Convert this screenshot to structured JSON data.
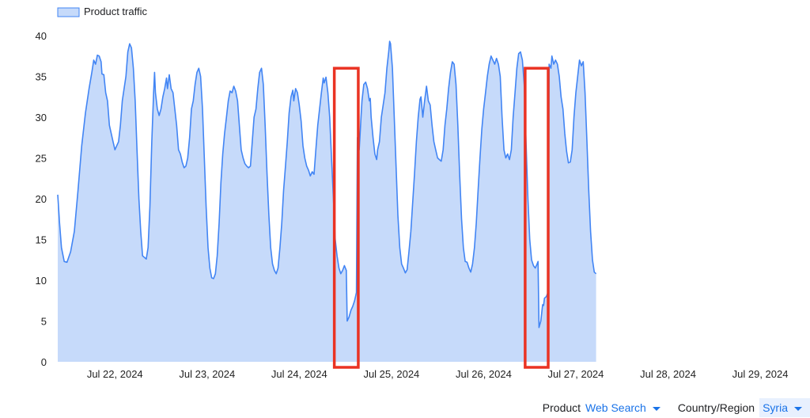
{
  "chart_data": {
    "type": "area",
    "legend": {
      "label": "Product traffic",
      "placement": "top-left"
    },
    "colors": {
      "line": "#4285f4",
      "fill": "#c6dafa",
      "highlight": "#ea3323",
      "tick_text": "#222222"
    },
    "ylim": [
      0,
      40
    ],
    "yticks": [
      0,
      5,
      10,
      15,
      20,
      25,
      30,
      35,
      40
    ],
    "xlim": [
      0,
      8.1
    ],
    "xticks": [
      {
        "x": 0.62,
        "label": "Jul 22, 2024"
      },
      {
        "x": 1.62,
        "label": "Jul 23, 2024"
      },
      {
        "x": 2.62,
        "label": "Jul 24, 2024"
      },
      {
        "x": 3.62,
        "label": "Jul 25, 2024"
      },
      {
        "x": 4.62,
        "label": "Jul 26, 2024"
      },
      {
        "x": 5.62,
        "label": "Jul 27, 2024"
      },
      {
        "x": 6.62,
        "label": "Jul 28, 2024"
      },
      {
        "x": 7.62,
        "label": "Jul 29, 2024"
      }
    ],
    "grid": false,
    "series": [
      {
        "name": "Product traffic",
        "points": [
          [
            0.0,
            20.5
          ],
          [
            0.02,
            17
          ],
          [
            0.04,
            14
          ],
          [
            0.07,
            12.3
          ],
          [
            0.1,
            12.2
          ],
          [
            0.14,
            13.5
          ],
          [
            0.18,
            16
          ],
          [
            0.22,
            21
          ],
          [
            0.26,
            26.5
          ],
          [
            0.3,
            30.5
          ],
          [
            0.34,
            33.5
          ],
          [
            0.37,
            35.5
          ],
          [
            0.39,
            37
          ],
          [
            0.41,
            36.5
          ],
          [
            0.43,
            37.6
          ],
          [
            0.45,
            37.5
          ],
          [
            0.47,
            36.8
          ],
          [
            0.48,
            35.3
          ],
          [
            0.5,
            35.2
          ],
          [
            0.52,
            33
          ],
          [
            0.54,
            32
          ],
          [
            0.56,
            29
          ],
          [
            0.58,
            28
          ],
          [
            0.6,
            27
          ],
          [
            0.62,
            26
          ],
          [
            0.64,
            26.5
          ],
          [
            0.66,
            27
          ],
          [
            0.68,
            29
          ],
          [
            0.7,
            32
          ],
          [
            0.72,
            33.5
          ],
          [
            0.74,
            35
          ],
          [
            0.76,
            38
          ],
          [
            0.78,
            39
          ],
          [
            0.8,
            38.5
          ],
          [
            0.82,
            36
          ],
          [
            0.84,
            32
          ],
          [
            0.86,
            26
          ],
          [
            0.88,
            20
          ],
          [
            0.9,
            16
          ],
          [
            0.92,
            13
          ],
          [
            0.94,
            12.8
          ],
          [
            0.96,
            12.6
          ],
          [
            0.98,
            14
          ],
          [
            1.0,
            19
          ],
          [
            1.02,
            27
          ],
          [
            1.04,
            33
          ],
          [
            1.05,
            35.5
          ],
          [
            1.06,
            33
          ],
          [
            1.08,
            31
          ],
          [
            1.1,
            30.2
          ],
          [
            1.12,
            31
          ],
          [
            1.14,
            32.5
          ],
          [
            1.16,
            33.5
          ],
          [
            1.18,
            34.8
          ],
          [
            1.19,
            33.5
          ],
          [
            1.21,
            35.2
          ],
          [
            1.23,
            33.5
          ],
          [
            1.25,
            33
          ],
          [
            1.27,
            31
          ],
          [
            1.29,
            29
          ],
          [
            1.31,
            26
          ],
          [
            1.33,
            25.5
          ],
          [
            1.35,
            24.5
          ],
          [
            1.37,
            23.8
          ],
          [
            1.39,
            24
          ],
          [
            1.41,
            25
          ],
          [
            1.43,
            27.5
          ],
          [
            1.45,
            31
          ],
          [
            1.47,
            32
          ],
          [
            1.49,
            34
          ],
          [
            1.51,
            35.5
          ],
          [
            1.53,
            36
          ],
          [
            1.55,
            35
          ],
          [
            1.57,
            31
          ],
          [
            1.59,
            25
          ],
          [
            1.61,
            19
          ],
          [
            1.63,
            14
          ],
          [
            1.65,
            11.5
          ],
          [
            1.67,
            10.3
          ],
          [
            1.69,
            10.2
          ],
          [
            1.71,
            10.8
          ],
          [
            1.73,
            13
          ],
          [
            1.75,
            17
          ],
          [
            1.77,
            22
          ],
          [
            1.79,
            25.5
          ],
          [
            1.81,
            28
          ],
          [
            1.83,
            30
          ],
          [
            1.85,
            32
          ],
          [
            1.87,
            33.2
          ],
          [
            1.89,
            33
          ],
          [
            1.91,
            33.8
          ],
          [
            1.93,
            33.2
          ],
          [
            1.95,
            32
          ],
          [
            1.97,
            29
          ],
          [
            1.99,
            26
          ],
          [
            2.01,
            25
          ],
          [
            2.03,
            24.3
          ],
          [
            2.05,
            24
          ],
          [
            2.07,
            23.8
          ],
          [
            2.09,
            24
          ],
          [
            2.11,
            27
          ],
          [
            2.13,
            30
          ],
          [
            2.15,
            31
          ],
          [
            2.17,
            33.5
          ],
          [
            2.19,
            35.5
          ],
          [
            2.21,
            36
          ],
          [
            2.23,
            34
          ],
          [
            2.25,
            29
          ],
          [
            2.27,
            23
          ],
          [
            2.29,
            18
          ],
          [
            2.31,
            14
          ],
          [
            2.33,
            12
          ],
          [
            2.35,
            11.2
          ],
          [
            2.37,
            10.8
          ],
          [
            2.39,
            11.5
          ],
          [
            2.41,
            14
          ],
          [
            2.43,
            17
          ],
          [
            2.45,
            21
          ],
          [
            2.47,
            24
          ],
          [
            2.49,
            27
          ],
          [
            2.51,
            30.5
          ],
          [
            2.53,
            32.5
          ],
          [
            2.55,
            33.3
          ],
          [
            2.56,
            32
          ],
          [
            2.58,
            33.5
          ],
          [
            2.6,
            33
          ],
          [
            2.62,
            31.5
          ],
          [
            2.64,
            29.5
          ],
          [
            2.66,
            26.5
          ],
          [
            2.68,
            25
          ],
          [
            2.7,
            24
          ],
          [
            2.72,
            23.5
          ],
          [
            2.74,
            22.8
          ],
          [
            2.76,
            23.3
          ],
          [
            2.78,
            23
          ],
          [
            2.8,
            26
          ],
          [
            2.82,
            29
          ],
          [
            2.84,
            31
          ],
          [
            2.86,
            33
          ],
          [
            2.88,
            34.8
          ],
          [
            2.89,
            34.2
          ],
          [
            2.91,
            34.9
          ],
          [
            2.93,
            33
          ],
          [
            2.95,
            30
          ],
          [
            2.97,
            25
          ],
          [
            2.99,
            20
          ],
          [
            3.01,
            15
          ],
          [
            3.03,
            13
          ],
          [
            3.05,
            11.5
          ],
          [
            3.07,
            10.8
          ],
          [
            3.09,
            11.2
          ],
          [
            3.11,
            11.8
          ],
          [
            3.13,
            11.2
          ],
          [
            3.14,
            5
          ],
          [
            3.16,
            5.5
          ],
          [
            3.18,
            6.3
          ],
          [
            3.2,
            6.8
          ],
          [
            3.22,
            7.5
          ],
          [
            3.24,
            8.5
          ],
          [
            3.25,
            27.5
          ],
          [
            3.26,
            26.8
          ],
          [
            3.27,
            26
          ],
          [
            3.28,
            28
          ],
          [
            3.29,
            30
          ],
          [
            3.3,
            32
          ],
          [
            3.32,
            34
          ],
          [
            3.34,
            34.3
          ],
          [
            3.36,
            33.5
          ],
          [
            3.38,
            32
          ],
          [
            3.39,
            32.3
          ],
          [
            3.4,
            30
          ],
          [
            3.42,
            27.5
          ],
          [
            3.44,
            25.5
          ],
          [
            3.46,
            24.8
          ],
          [
            3.47,
            26
          ],
          [
            3.49,
            27
          ],
          [
            3.51,
            30
          ],
          [
            3.53,
            31.5
          ],
          [
            3.55,
            33
          ],
          [
            3.57,
            36
          ],
          [
            3.59,
            38
          ],
          [
            3.6,
            39.3
          ],
          [
            3.61,
            39
          ],
          [
            3.63,
            36
          ],
          [
            3.65,
            30
          ],
          [
            3.67,
            24
          ],
          [
            3.69,
            18
          ],
          [
            3.71,
            14
          ],
          [
            3.73,
            12
          ],
          [
            3.75,
            11.5
          ],
          [
            3.77,
            10.9
          ],
          [
            3.79,
            11.3
          ],
          [
            3.81,
            13.5
          ],
          [
            3.83,
            16
          ],
          [
            3.85,
            19.5
          ],
          [
            3.87,
            23
          ],
          [
            3.89,
            27
          ],
          [
            3.91,
            30
          ],
          [
            3.93,
            32.2
          ],
          [
            3.94,
            32.5
          ],
          [
            3.96,
            30
          ],
          [
            3.98,
            32
          ],
          [
            4.0,
            33.8
          ],
          [
            4.02,
            32
          ],
          [
            4.04,
            31.5
          ],
          [
            4.06,
            29
          ],
          [
            4.08,
            27
          ],
          [
            4.1,
            26
          ],
          [
            4.12,
            25
          ],
          [
            4.14,
            24.8
          ],
          [
            4.16,
            24.6
          ],
          [
            4.18,
            26
          ],
          [
            4.2,
            29
          ],
          [
            4.22,
            31
          ],
          [
            4.24,
            33.5
          ],
          [
            4.26,
            35.5
          ],
          [
            4.28,
            36.8
          ],
          [
            4.3,
            36.5
          ],
          [
            4.32,
            34
          ],
          [
            4.34,
            29
          ],
          [
            4.36,
            23
          ],
          [
            4.38,
            17.5
          ],
          [
            4.4,
            14
          ],
          [
            4.42,
            12.3
          ],
          [
            4.44,
            12.2
          ],
          [
            4.46,
            11.5
          ],
          [
            4.48,
            11
          ],
          [
            4.5,
            12
          ],
          [
            4.52,
            14
          ],
          [
            4.54,
            17
          ],
          [
            4.56,
            21
          ],
          [
            4.58,
            25
          ],
          [
            4.6,
            28.5
          ],
          [
            4.62,
            31
          ],
          [
            4.64,
            33
          ],
          [
            4.66,
            35
          ],
          [
            4.68,
            36.5
          ],
          [
            4.7,
            37.5
          ],
          [
            4.72,
            37
          ],
          [
            4.74,
            36.5
          ],
          [
            4.76,
            37.2
          ],
          [
            4.78,
            36.5
          ],
          [
            4.8,
            35
          ],
          [
            4.82,
            30
          ],
          [
            4.84,
            26
          ],
          [
            4.86,
            25
          ],
          [
            4.88,
            25.5
          ],
          [
            4.9,
            24.8
          ],
          [
            4.92,
            26
          ],
          [
            4.94,
            30
          ],
          [
            4.96,
            33
          ],
          [
            4.98,
            36
          ],
          [
            5.0,
            37.8
          ],
          [
            5.02,
            38
          ],
          [
            5.04,
            37
          ],
          [
            5.06,
            34
          ],
          [
            5.08,
            27
          ],
          [
            5.1,
            20
          ],
          [
            5.12,
            15
          ],
          [
            5.14,
            12.5
          ],
          [
            5.16,
            11.8
          ],
          [
            5.18,
            11.5
          ],
          [
            5.2,
            12
          ],
          [
            5.21,
            12.3
          ],
          [
            5.22,
            4.2
          ],
          [
            5.24,
            5
          ],
          [
            5.26,
            7
          ],
          [
            5.27,
            6.9
          ],
          [
            5.28,
            7.8
          ],
          [
            5.3,
            8
          ],
          [
            5.32,
            8.6
          ],
          [
            5.33,
            36.5
          ],
          [
            5.35,
            36
          ],
          [
            5.36,
            37.5
          ],
          [
            5.38,
            36.5
          ],
          [
            5.4,
            37
          ],
          [
            5.42,
            36.5
          ],
          [
            5.44,
            35
          ],
          [
            5.46,
            32.5
          ],
          [
            5.48,
            31
          ],
          [
            5.5,
            28
          ],
          [
            5.52,
            25.8
          ],
          [
            5.54,
            24.4
          ],
          [
            5.56,
            24.5
          ],
          [
            5.58,
            26
          ],
          [
            5.6,
            30
          ],
          [
            5.62,
            33
          ],
          [
            5.64,
            35
          ],
          [
            5.66,
            37
          ],
          [
            5.68,
            36.3
          ],
          [
            5.7,
            36.8
          ],
          [
            5.72,
            33
          ],
          [
            5.74,
            27
          ],
          [
            5.76,
            21
          ],
          [
            5.78,
            16
          ],
          [
            5.8,
            12.5
          ],
          [
            5.82,
            11
          ],
          [
            5.84,
            10.8
          ]
        ]
      }
    ],
    "annotations": [
      {
        "type": "rect",
        "label": "",
        "x_start": 3.0,
        "x_end": 3.26,
        "y_start": 0,
        "y_end": 36
      },
      {
        "type": "rect",
        "label": "",
        "x_start": 5.07,
        "x_end": 5.32,
        "y_start": 0,
        "y_end": 36
      }
    ]
  },
  "controls": {
    "product_label": "Product",
    "product_value": "Web Search",
    "region_label": "Country/Region",
    "region_value": "Syria"
  }
}
